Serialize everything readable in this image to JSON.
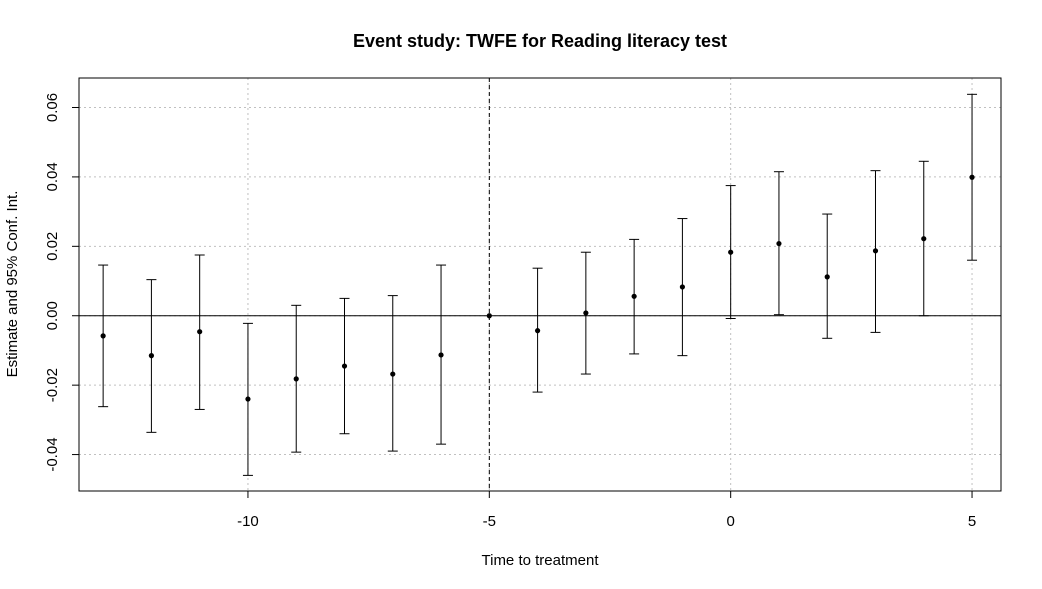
{
  "chart_data": {
    "type": "scatter",
    "title": "Event study: TWFE for Reading literacy test",
    "xlabel": "Time to treatment",
    "ylabel": "Estimate and 95% Conf. Int.",
    "xlim": [
      -13.5,
      5.6
    ],
    "ylim": [
      -0.0505,
      0.0685
    ],
    "x_ticks": [
      -10,
      -5,
      0,
      5
    ],
    "x_tick_labels": [
      "-10",
      "-5",
      "0",
      "5"
    ],
    "y_ticks": [
      -0.04,
      -0.02,
      0.0,
      0.02,
      0.04,
      0.06
    ],
    "y_tick_labels": [
      "-0.04",
      "-0.02",
      "0.00",
      "0.02",
      "0.04",
      "0.06"
    ],
    "grid": true,
    "reference_line_y": 0,
    "reference_line_x": -5,
    "series": [
      {
        "points": [
          {
            "x": -13,
            "estimate": -0.0058,
            "ci_low": -0.0262,
            "ci_high": 0.0146
          },
          {
            "x": -12,
            "estimate": -0.0115,
            "ci_low": -0.0336,
            "ci_high": 0.0104
          },
          {
            "x": -11,
            "estimate": -0.0046,
            "ci_low": -0.027,
            "ci_high": 0.0175
          },
          {
            "x": -10,
            "estimate": -0.024,
            "ci_low": -0.046,
            "ci_high": -0.0022
          },
          {
            "x": -9,
            "estimate": -0.0182,
            "ci_low": -0.0393,
            "ci_high": 0.003
          },
          {
            "x": -8,
            "estimate": -0.0145,
            "ci_low": -0.034,
            "ci_high": 0.005
          },
          {
            "x": -7,
            "estimate": -0.0168,
            "ci_low": -0.039,
            "ci_high": 0.0058
          },
          {
            "x": -6,
            "estimate": -0.0113,
            "ci_low": -0.037,
            "ci_high": 0.0146
          },
          {
            "x": -5,
            "estimate": 0.0,
            "ci_low": 0.0,
            "ci_high": 0.0
          },
          {
            "x": -4,
            "estimate": -0.0043,
            "ci_low": -0.022,
            "ci_high": 0.0137
          },
          {
            "x": -3,
            "estimate": 0.0008,
            "ci_low": -0.0168,
            "ci_high": 0.0183
          },
          {
            "x": -2,
            "estimate": 0.0056,
            "ci_low": -0.011,
            "ci_high": 0.022
          },
          {
            "x": -1,
            "estimate": 0.0083,
            "ci_low": -0.0115,
            "ci_high": 0.028
          },
          {
            "x": 0,
            "estimate": 0.0183,
            "ci_low": -0.0008,
            "ci_high": 0.0375
          },
          {
            "x": 1,
            "estimate": 0.0208,
            "ci_low": 0.0003,
            "ci_high": 0.0415
          },
          {
            "x": 2,
            "estimate": 0.0112,
            "ci_low": -0.0065,
            "ci_high": 0.0293
          },
          {
            "x": 3,
            "estimate": 0.0187,
            "ci_low": -0.0048,
            "ci_high": 0.0418
          },
          {
            "x": 4,
            "estimate": 0.0222,
            "ci_low": 0.0,
            "ci_high": 0.0445
          },
          {
            "x": 5,
            "estimate": 0.0399,
            "ci_low": 0.016,
            "ci_high": 0.0638
          }
        ]
      }
    ]
  }
}
